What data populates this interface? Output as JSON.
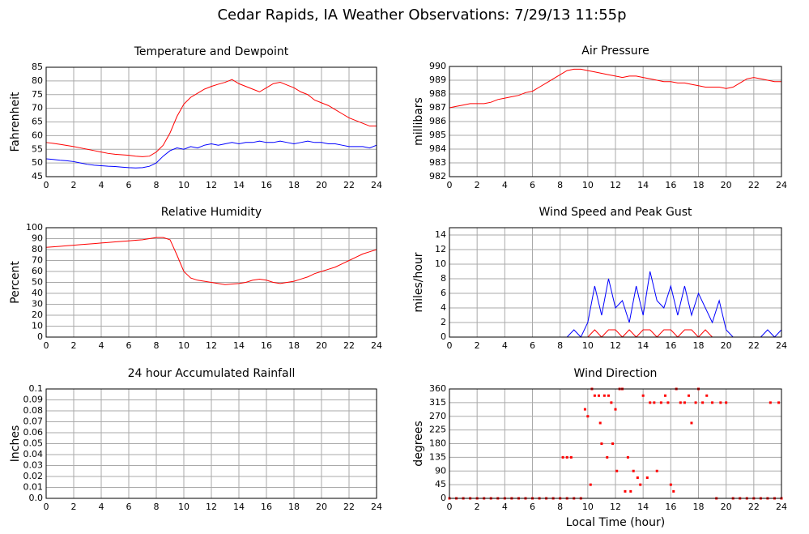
{
  "title": "Cedar Rapids, IA Weather Observations: 7/29/13 11:55p",
  "chart_data": [
    {
      "type": "line",
      "title": "Temperature and Dewpoint",
      "y_label": "Fahrenheit",
      "xlim": [
        0,
        24
      ],
      "xticks": [
        0,
        2,
        4,
        6,
        8,
        10,
        12,
        14,
        16,
        18,
        20,
        22,
        24
      ],
      "ylim": [
        45,
        85
      ],
      "yticks": [
        45,
        50,
        55,
        60,
        65,
        70,
        75,
        80,
        85
      ],
      "grid": true,
      "x": [
        0,
        0.5,
        1,
        1.5,
        2,
        2.5,
        3,
        3.5,
        4,
        4.5,
        5,
        5.5,
        6,
        6.5,
        7,
        7.5,
        8,
        8.5,
        9,
        9.5,
        10,
        10.5,
        11,
        11.5,
        12,
        12.5,
        13,
        13.5,
        14,
        14.5,
        15,
        15.5,
        16,
        16.5,
        17,
        17.5,
        18,
        18.5,
        19,
        19.5,
        20,
        20.5,
        21,
        21.5,
        22,
        22.5,
        23,
        23.5,
        24
      ],
      "series": [
        {
          "color": "#ff0000",
          "values": [
            57.5,
            57.2,
            56.8,
            56.4,
            56,
            55.5,
            55,
            54.5,
            54,
            53.5,
            53.2,
            53,
            52.8,
            52.5,
            52.3,
            52.5,
            54,
            56.5,
            61,
            67,
            71.5,
            74,
            75.5,
            77,
            78,
            78.8,
            79.5,
            80.5,
            79,
            78,
            77,
            76,
            77.5,
            79,
            79.5,
            78.5,
            77.5,
            76,
            75,
            73,
            72,
            71,
            69.5,
            68,
            66.5,
            65.5,
            64.5,
            63.5,
            63.5
          ]
        },
        {
          "color": "#0000ff",
          "values": [
            51.5,
            51.3,
            51,
            50.8,
            50.5,
            50,
            49.5,
            49.2,
            49,
            48.8,
            48.7,
            48.5,
            48.3,
            48.2,
            48.3,
            48.8,
            50,
            52.5,
            54.5,
            55.5,
            55,
            56,
            55.5,
            56.5,
            57,
            56.5,
            57,
            57.5,
            57,
            57.5,
            57.5,
            58,
            57.5,
            57.5,
            58,
            57.5,
            57,
            57.5,
            58,
            57.5,
            57.5,
            57,
            57,
            56.5,
            56,
            56,
            56,
            55.5,
            56.5
          ]
        }
      ]
    },
    {
      "type": "line",
      "title": "Air Pressure",
      "y_label": "millibars",
      "xlim": [
        0,
        24
      ],
      "xticks": [
        0,
        2,
        4,
        6,
        8,
        10,
        12,
        14,
        16,
        18,
        20,
        22,
        24
      ],
      "ylim": [
        982,
        990
      ],
      "yticks": [
        982,
        983,
        984,
        985,
        986,
        987,
        988,
        989,
        990
      ],
      "grid": true,
      "x": [
        0,
        0.5,
        1,
        1.5,
        2,
        2.5,
        3,
        3.5,
        4,
        4.5,
        5,
        5.5,
        6,
        6.5,
        7,
        7.5,
        8,
        8.5,
        9,
        9.5,
        10,
        10.5,
        11,
        11.5,
        12,
        12.5,
        13,
        13.5,
        14,
        14.5,
        15,
        15.5,
        16,
        16.5,
        17,
        17.5,
        18,
        18.5,
        19,
        19.5,
        20,
        20.5,
        21,
        21.5,
        22,
        22.5,
        23,
        23.5,
        24
      ],
      "series": [
        {
          "color": "#ff0000",
          "values": [
            987,
            987.1,
            987.2,
            987.3,
            987.3,
            987.3,
            987.4,
            987.6,
            987.7,
            987.8,
            987.9,
            988.1,
            988.2,
            988.5,
            988.8,
            989.1,
            989.4,
            989.7,
            989.8,
            989.8,
            989.7,
            989.6,
            989.5,
            989.4,
            989.3,
            989.2,
            989.3,
            989.3,
            989.2,
            989.1,
            989,
            988.9,
            988.9,
            988.8,
            988.8,
            988.7,
            988.6,
            988.5,
            988.5,
            988.5,
            988.4,
            988.5,
            988.8,
            989.1,
            989.2,
            989.1,
            989,
            988.9,
            988.9
          ]
        }
      ]
    },
    {
      "type": "line",
      "title": "Relative Humidity",
      "y_label": "Percent",
      "xlim": [
        0,
        24
      ],
      "xticks": [
        0,
        2,
        4,
        6,
        8,
        10,
        12,
        14,
        16,
        18,
        20,
        22,
        24
      ],
      "ylim": [
        0,
        100
      ],
      "yticks": [
        0,
        10,
        20,
        30,
        40,
        50,
        60,
        70,
        80,
        90,
        100
      ],
      "grid": true,
      "x": [
        0,
        0.5,
        1,
        1.5,
        2,
        2.5,
        3,
        3.5,
        4,
        4.5,
        5,
        5.5,
        6,
        6.5,
        7,
        7.5,
        8,
        8.5,
        9,
        9.5,
        10,
        10.5,
        11,
        11.5,
        12,
        12.5,
        13,
        13.5,
        14,
        14.5,
        15,
        15.5,
        16,
        16.5,
        17,
        17.5,
        18,
        18.5,
        19,
        19.5,
        20,
        20.5,
        21,
        21.5,
        22,
        22.5,
        23,
        23.5,
        24
      ],
      "series": [
        {
          "color": "#ff0000",
          "values": [
            82,
            82.5,
            83,
            83.5,
            84,
            84.5,
            85,
            85.5,
            86,
            86.5,
            87,
            87.5,
            88,
            88.5,
            89,
            90,
            91,
            91,
            89,
            75,
            60,
            54,
            52,
            51,
            50,
            49,
            48,
            48.5,
            49,
            50,
            52,
            53,
            52,
            50,
            49,
            50,
            51,
            53,
            55,
            58,
            60,
            62,
            64,
            67,
            70,
            73,
            76,
            78,
            80
          ]
        }
      ]
    },
    {
      "type": "line",
      "title": "Wind Speed and Peak Gust",
      "y_label": "miles/hour",
      "xlim": [
        0,
        24
      ],
      "xticks": [
        0,
        2,
        4,
        6,
        8,
        10,
        12,
        14,
        16,
        18,
        20,
        22,
        24
      ],
      "ylim": [
        0,
        15
      ],
      "yticks": [
        0,
        2,
        4,
        6,
        8,
        10,
        12,
        14
      ],
      "grid": true,
      "x": [
        0,
        0.5,
        1,
        1.5,
        2,
        2.5,
        3,
        3.5,
        4,
        4.5,
        5,
        5.5,
        6,
        6.5,
        7,
        7.5,
        8,
        8.5,
        9,
        9.5,
        10,
        10.5,
        11,
        11.5,
        12,
        12.5,
        13,
        13.5,
        14,
        14.5,
        15,
        15.5,
        16,
        16.5,
        17,
        17.5,
        18,
        18.5,
        19,
        19.5,
        20,
        20.5,
        21,
        21.5,
        22,
        22.5,
        23,
        23.5,
        24
      ],
      "series": [
        {
          "color": "#0000ff",
          "values": [
            0,
            0,
            0,
            0,
            0,
            0,
            0,
            0,
            0,
            0,
            0,
            0,
            0,
            0,
            0,
            0,
            0,
            0,
            1,
            0,
            2,
            7,
            3,
            8,
            4,
            5,
            2,
            7,
            3,
            9,
            5,
            4,
            7,
            3,
            7,
            3,
            6,
            4,
            2,
            5,
            1,
            0,
            0,
            0,
            0,
            0,
            1,
            0,
            1
          ]
        },
        {
          "color": "#ff0000",
          "values": [
            0,
            0,
            0,
            0,
            0,
            0,
            0,
            0,
            0,
            0,
            0,
            0,
            0,
            0,
            0,
            0,
            0,
            0,
            0,
            0,
            0,
            1,
            0,
            1,
            1,
            0,
            1,
            0,
            1,
            1,
            0,
            1,
            1,
            0,
            1,
            1,
            0,
            1,
            0,
            0,
            0,
            0,
            0,
            0,
            0,
            0,
            0,
            0,
            0
          ]
        }
      ]
    },
    {
      "type": "line",
      "title": "24 hour Accumulated Rainfall",
      "y_label": "Inches",
      "xlim": [
        0,
        24
      ],
      "xticks": [
        0,
        2,
        4,
        6,
        8,
        10,
        12,
        14,
        16,
        18,
        20,
        22,
        24
      ],
      "ylim": [
        0,
        0.1
      ],
      "yticks": [
        {
          "value": 0,
          "label": "0.0"
        },
        0.01,
        0.02,
        0.03,
        0.04,
        0.05,
        0.06,
        0.07,
        0.08,
        0.09,
        0.1
      ],
      "grid": true,
      "x": [
        0,
        24
      ],
      "series": [
        {
          "color": "#ff0000",
          "values": [
            0,
            0
          ]
        }
      ]
    },
    {
      "type": "scatter",
      "title": "Wind Direction",
      "y_label": "degrees",
      "x_label": "Local Time (hour)",
      "xlim": [
        0,
        24
      ],
      "xticks": [
        0,
        2,
        4,
        6,
        8,
        10,
        12,
        14,
        16,
        18,
        20,
        22,
        24
      ],
      "ylim": [
        0,
        360
      ],
      "yticks": [
        0,
        45,
        90,
        135,
        180,
        225,
        270,
        315,
        360
      ],
      "grid": true,
      "x": [
        0,
        0.5,
        1,
        1.5,
        2,
        2.5,
        3,
        3.5,
        4,
        4.5,
        5,
        5.5,
        6,
        6.5,
        7,
        7.5,
        8,
        8.5,
        9,
        9.5,
        8.2,
        8.5,
        8.8,
        9.8,
        10,
        10.2,
        10.3,
        10.5,
        10.8,
        10.9,
        11,
        11.2,
        11.4,
        11.5,
        11.7,
        11.8,
        12,
        12.1,
        12.3,
        12.5,
        12.7,
        12.9,
        13.1,
        13.3,
        13.6,
        13.8,
        14,
        14.3,
        14.5,
        14.8,
        15,
        15.3,
        15.6,
        15.8,
        16,
        16.2,
        16.4,
        16.7,
        17,
        17.3,
        17.5,
        17.8,
        18,
        18.3,
        18.6,
        19,
        19.3,
        19.6,
        20,
        20.5,
        21,
        21.5,
        22,
        22.5,
        23,
        23.2,
        23.5,
        23.8,
        24
      ],
      "series": [
        {
          "color": "#ff0000",
          "values": [
            0,
            0,
            0,
            0,
            0,
            0,
            0,
            0,
            0,
            0,
            0,
            0,
            0,
            0,
            0,
            0,
            0,
            0,
            0,
            0,
            135,
            135,
            135,
            293,
            270,
            45,
            360,
            338,
            338,
            248,
            180,
            338,
            135,
            338,
            315,
            180,
            293,
            90,
            360,
            360,
            23,
            135,
            23,
            90,
            68,
            45,
            338,
            68,
            315,
            315,
            90,
            315,
            338,
            315,
            45,
            23,
            360,
            315,
            315,
            338,
            248,
            315,
            360,
            315,
            338,
            315,
            0,
            315,
            315,
            0,
            0,
            0,
            0,
            0,
            0,
            315,
            0,
            315,
            0
          ]
        }
      ]
    }
  ]
}
